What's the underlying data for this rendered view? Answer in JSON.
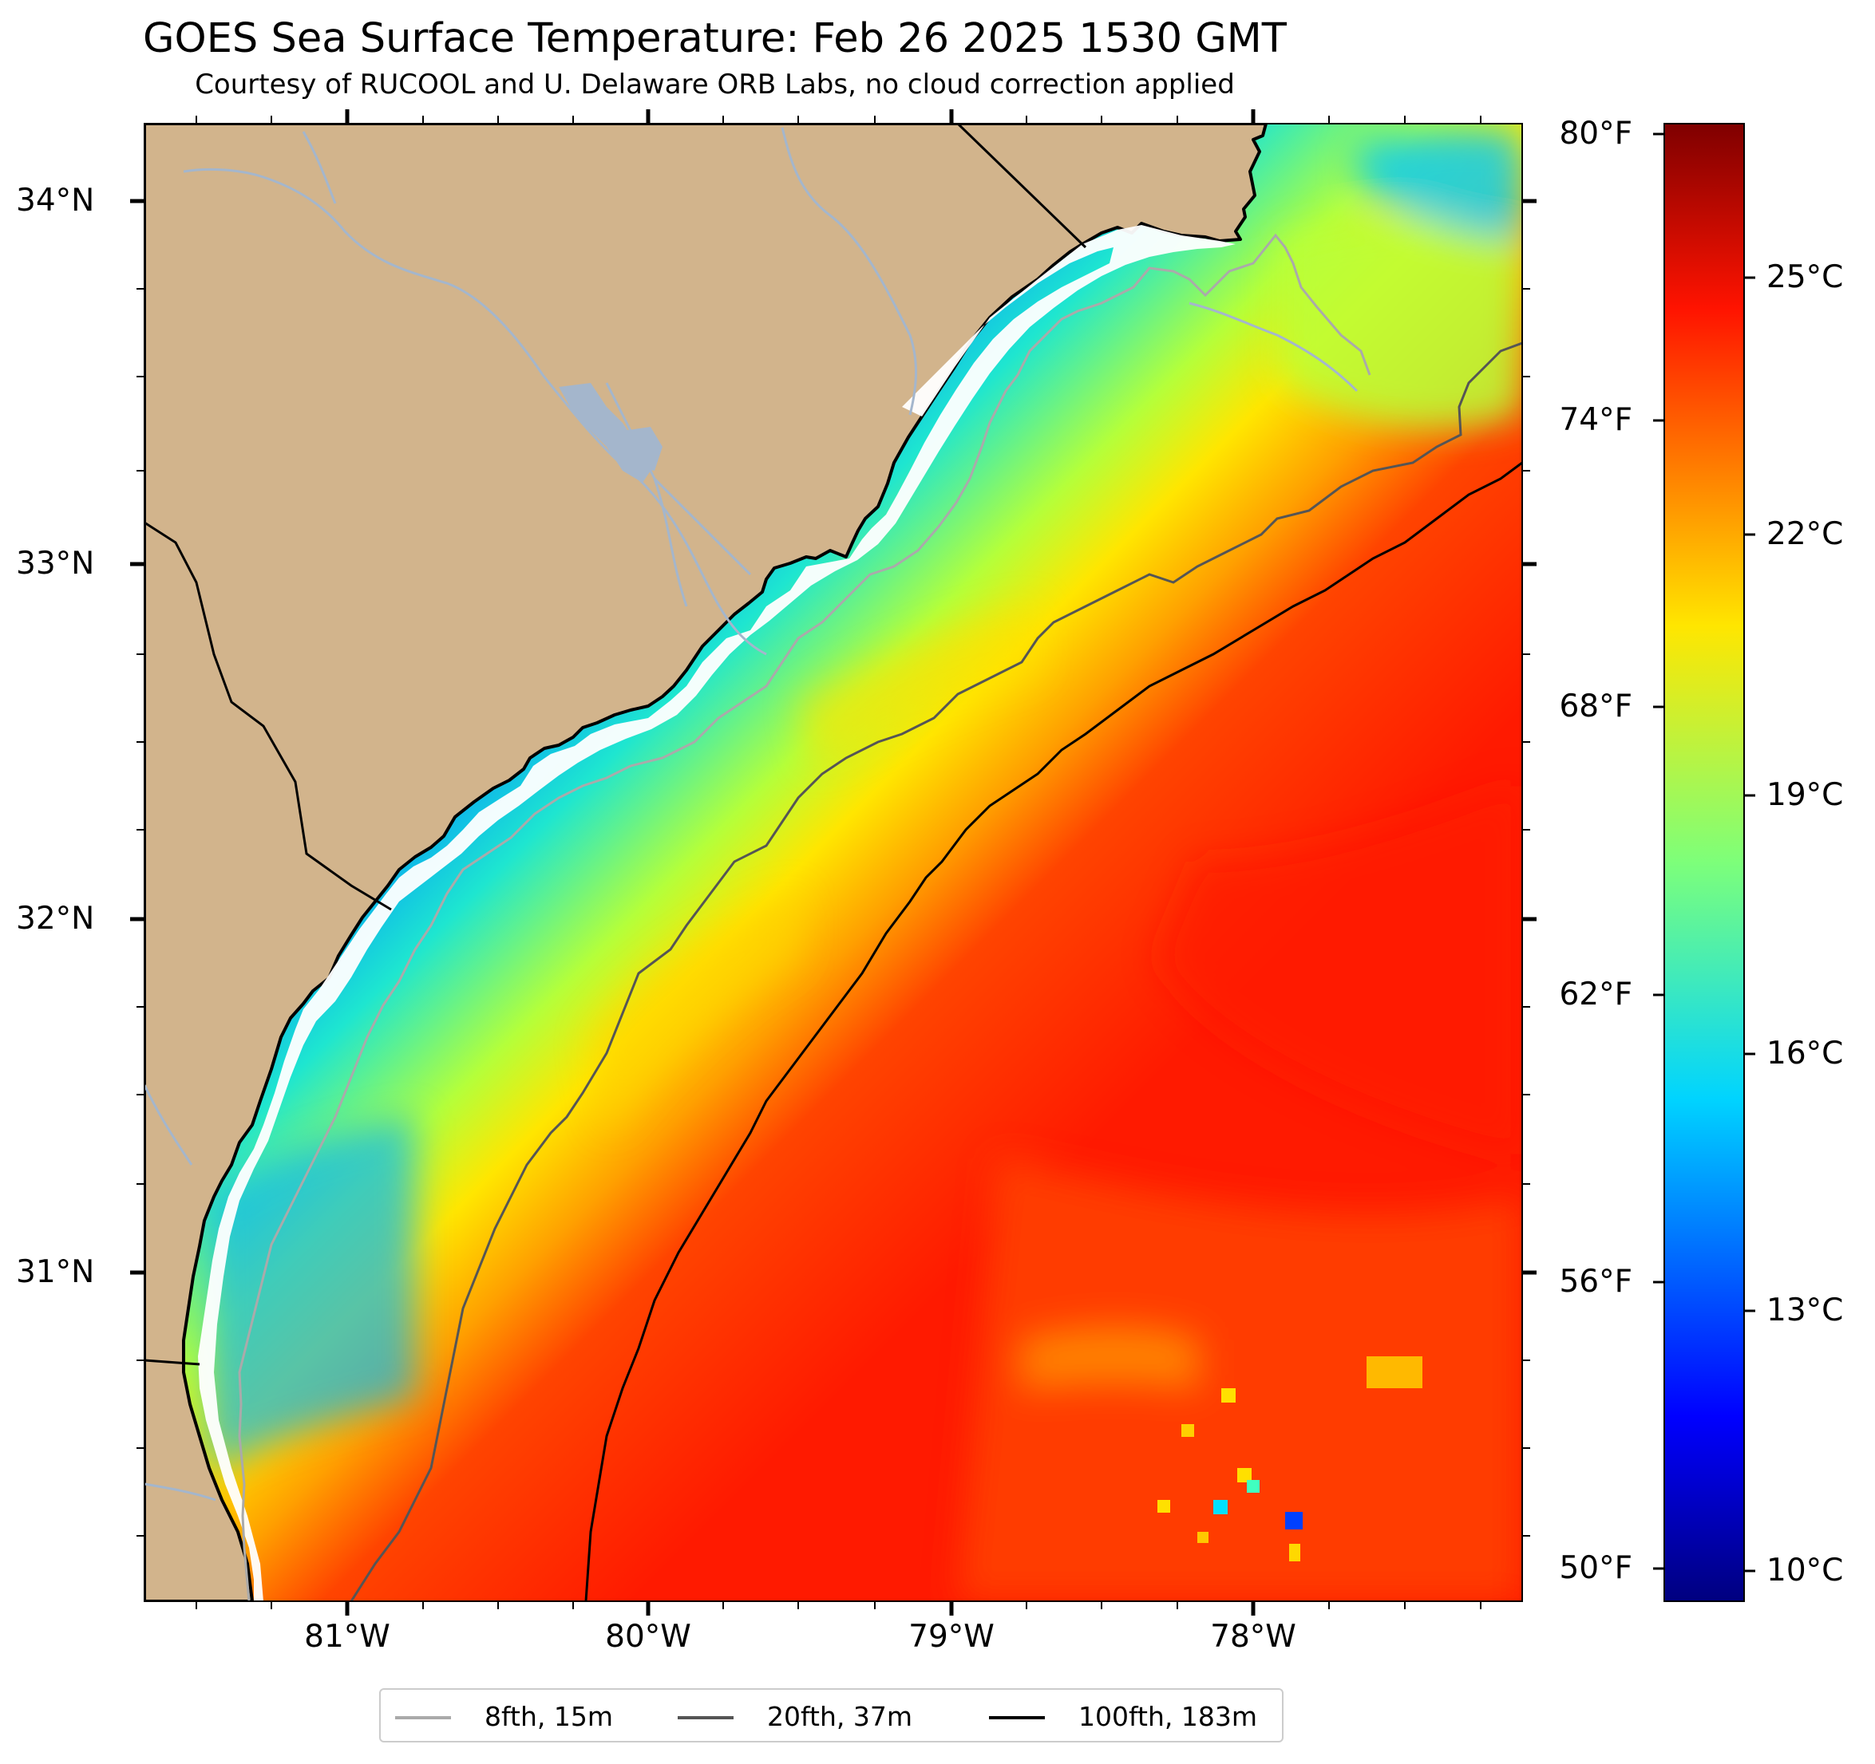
{
  "title": "GOES Sea Surface Temperature: Feb 26 2025 1530 GMT",
  "subtitle": "Courtesy of RUCOOL and U. Delaware ORB Labs, no cloud correction applied",
  "colors": {
    "land": "#d2b48c",
    "rivers": "#a4b6cc",
    "border": "#000000",
    "isobath_8fth": "#aaaaaa",
    "isobath_20fth": "#555555",
    "isobath_100fth": "#000000"
  },
  "map": {
    "lon_range": [
      -81.67,
      -77.1
    ],
    "lat_range": [
      30.1,
      34.22
    ],
    "lat_ticks": [
      "34°N",
      "33°N",
      "32°N",
      "31°N"
    ],
    "lon_ticks": [
      "81°W",
      "80°W",
      "79°W",
      "78°W"
    ]
  },
  "colorbar": {
    "colormap": "jet",
    "range_c": [
      9.5,
      27
    ],
    "celsius_ticks": [
      {
        "label": "25°C",
        "value": 25
      },
      {
        "label": "22°C",
        "value": 22
      },
      {
        "label": "19°C",
        "value": 19
      },
      {
        "label": "16°C",
        "value": 16
      },
      {
        "label": "13°C",
        "value": 13
      },
      {
        "label": "10°C",
        "value": 10
      }
    ],
    "fahrenheit_ticks": [
      {
        "label": "80°F",
        "value": 80
      },
      {
        "label": "74°F",
        "value": 74
      },
      {
        "label": "68°F",
        "value": 68
      },
      {
        "label": "62°F",
        "value": 62
      },
      {
        "label": "56°F",
        "value": 56
      },
      {
        "label": "50°F",
        "value": 50
      }
    ]
  },
  "legend": [
    {
      "label": "8fth, 15m",
      "color": "#aaaaaa"
    },
    {
      "label": "20fth, 37m",
      "color": "#555555"
    },
    {
      "label": "100fth, 183m",
      "color": "#000000"
    }
  ]
}
